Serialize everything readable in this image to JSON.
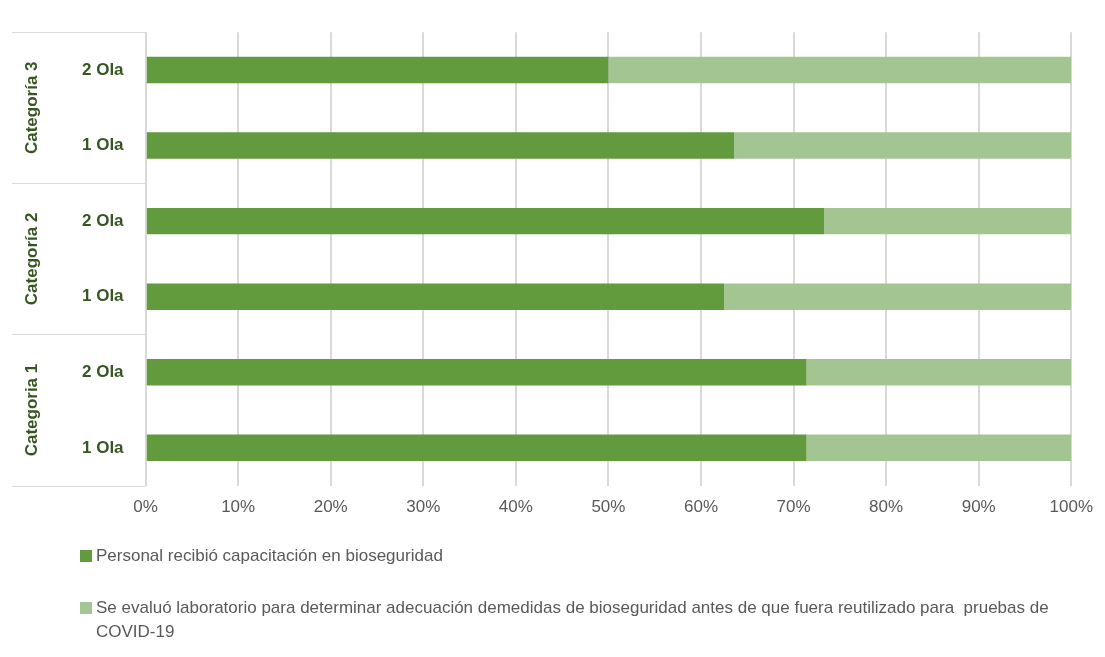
{
  "chart_data": {
    "type": "bar",
    "orientation": "horizontal",
    "stacked": true,
    "categories": [
      "2 Ola",
      "1 Ola",
      "2 Ola",
      "1 Ola",
      "2 Ola",
      "1 Ola"
    ],
    "annotations": [
      "Categoría 3",
      "Categoría 2",
      "Categoria 1"
    ],
    "series": [
      {
        "name": "Personal recibió capacitación en bioseguridad",
        "color": "#629a3e",
        "values": [
          50,
          63.6,
          73.3,
          62.5,
          71.4,
          71.4
        ]
      },
      {
        "name": "Se evaluó laboratorio para determinar adecuación demedidas de bioseguridad antes de que fuera reutilizado para  pruebas de COVID-19",
        "color": "#a3c591",
        "values": [
          50,
          36.4,
          26.7,
          37.5,
          28.6,
          28.6
        ]
      }
    ],
    "xlim": [
      0,
      100
    ],
    "xticks": [
      {
        "value": 0,
        "label": "0%"
      },
      {
        "value": 10,
        "label": "10%"
      },
      {
        "value": 20,
        "label": "20%"
      },
      {
        "value": 30,
        "label": "30%"
      },
      {
        "value": 40,
        "label": "40%"
      },
      {
        "value": 50,
        "label": "50%"
      },
      {
        "value": 60,
        "label": "60%"
      },
      {
        "value": 70,
        "label": "70%"
      },
      {
        "value": 80,
        "label": "80%"
      },
      {
        "value": 90,
        "label": "90%"
      },
      {
        "value": 100,
        "label": "100%"
      }
    ],
    "grid": "x",
    "legend": "bottom"
  }
}
